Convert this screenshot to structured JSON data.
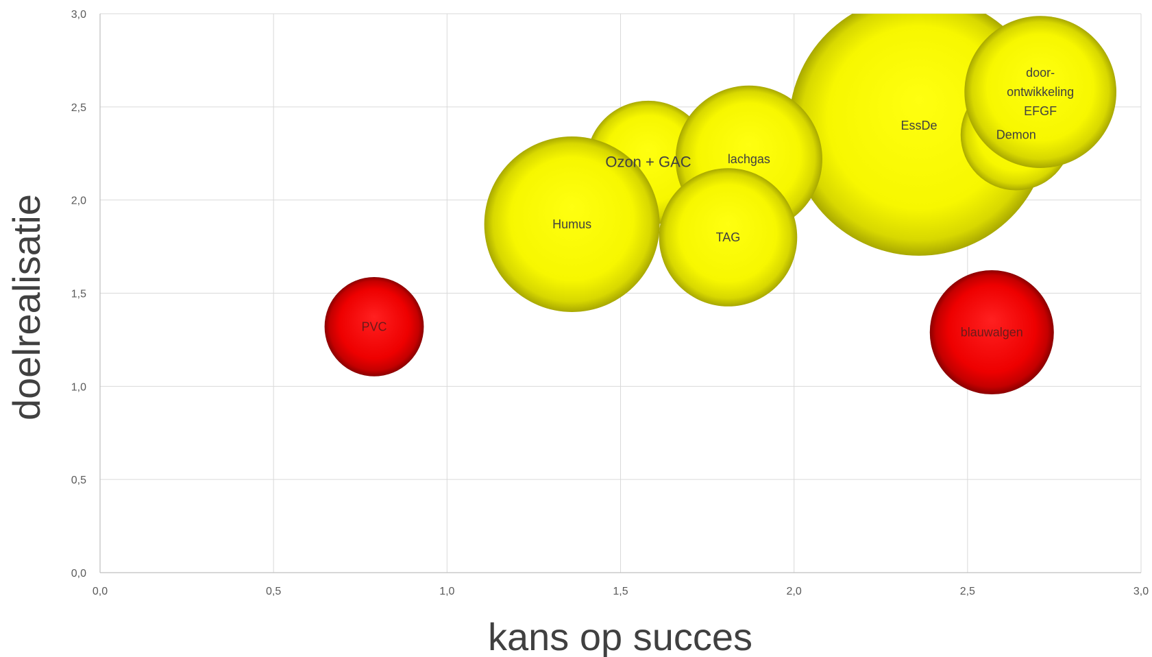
{
  "chart_data": {
    "type": "bubble",
    "xlabel": "kans op succes",
    "ylabel": "doelrealisatie",
    "xlim": [
      0,
      3
    ],
    "ylim": [
      0,
      3
    ],
    "x_ticks": [
      "0,0",
      "0,5",
      "1,0",
      "1,5",
      "2,0",
      "2,5",
      "3,0"
    ],
    "y_ticks": [
      "0,0",
      "0,5",
      "1,0",
      "1,5",
      "2,0",
      "2,5",
      "3,0"
    ],
    "grid": true,
    "colors": {
      "yellow": "#ffff00",
      "red": "#ff0000"
    },
    "bubbles": [
      {
        "label": "EssDe",
        "x": 2.36,
        "y": 2.4,
        "size": 2.2,
        "color": "yellow"
      },
      {
        "label": "Ozon + GAC",
        "x": 1.58,
        "y": 2.2,
        "size": 0.5,
        "color": "yellow",
        "label_style": "big"
      },
      {
        "label": "lachgas",
        "x": 1.87,
        "y": 2.22,
        "size": 0.7,
        "color": "yellow"
      },
      {
        "label": "Humus",
        "x": 1.36,
        "y": 1.87,
        "size": 1.0,
        "color": "yellow"
      },
      {
        "label": "TAG",
        "x": 1.81,
        "y": 1.8,
        "size": 0.62,
        "color": "yellow"
      },
      {
        "label": "Demon",
        "x": 2.64,
        "y": 2.35,
        "size": 0.4,
        "color": "yellow"
      },
      {
        "label": "door-ontwikkeling EFGF",
        "label_lines": [
          "door-",
          "ontwikkeling",
          "EFGF"
        ],
        "x": 2.71,
        "y": 2.58,
        "size": 0.75,
        "color": "yellow"
      },
      {
        "label": "PVC",
        "x": 0.79,
        "y": 1.32,
        "size": 0.32,
        "color": "red"
      },
      {
        "label": "blauwalgen",
        "x": 2.57,
        "y": 1.29,
        "size": 0.5,
        "color": "red"
      }
    ]
  }
}
